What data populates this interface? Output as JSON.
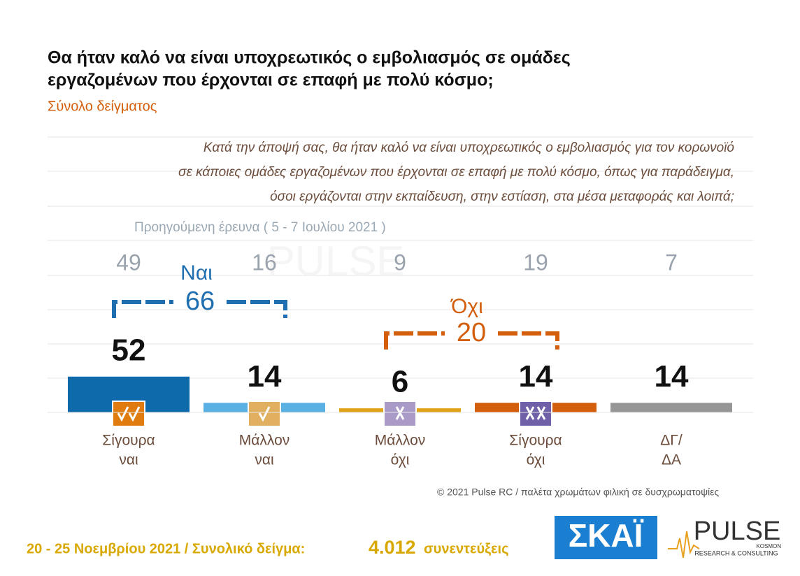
{
  "chart_data": {
    "type": "bar",
    "title": [
      "Θα ήταν καλό να είναι υποχρεωτικός ο εμβολιασμός σε ομάδες",
      "εργαζομένων που έρχονται σε επαφή με πολύ κόσμο;"
    ],
    "subtitle": "Σύνολο δείγματος",
    "question": [
      "Κατά την άποψή σας, θα ήταν καλό να είναι υποχρεωτικός ο εμβολιασμός για τον κορωνοϊό",
      "σε κάποιες ομάδες εργαζομένων που έρχονται σε επαφή με πολύ κόσμο, όπως για παράδειγμα,",
      "όσοι εργάζονται στην εκπαίδευση, στην εστίαση, στα μέσα μεταφοράς και λοιπά;"
    ],
    "previous_label": "Προηγούμενη έρευνα  ( 5 - 7 Ιουλίου 2021 )",
    "categories": [
      [
        "Σίγουρα",
        "ναι"
      ],
      [
        "Μάλλον",
        "ναι"
      ],
      [
        "Μάλλον",
        "όχι"
      ],
      [
        "Σίγουρα",
        "όχι"
      ],
      [
        "ΔΓ/",
        "ΔΑ"
      ]
    ],
    "series": [
      {
        "name": "Νοέμβριος 2021",
        "values": [
          52,
          14,
          6,
          14,
          14
        ],
        "colors": [
          "#0f6aab",
          "#5aafe3",
          "#e0a21a",
          "#d35f0c",
          "#969696"
        ]
      },
      {
        "name": "Προηγούμενη έρευνα",
        "values": [
          49,
          16,
          9,
          19,
          7
        ],
        "color": "#9aa3ad"
      }
    ],
    "groups": [
      {
        "label": "Ναι",
        "value": 66,
        "color": "#1f6fb0"
      },
      {
        "label": "Όχι",
        "value": 20,
        "color": "#d35f0c"
      }
    ],
    "ylim": [
      0,
      400
    ],
    "copyright": "© 2021 Pulse RC  /  παλέτα χρωμάτων φιλική σε δυσχρωματοψίες",
    "footer": {
      "dates": "20 - 25  Νοεμβρίου 2021  /  Συνολικό δείγμα:",
      "sample": "4.012",
      "unit": "συνεντεύξεις"
    },
    "logos": {
      "skai": "ΣΚΑΪ",
      "pulse": "PULSE",
      "pulse_sub": "RESEARCH & CONSULTING",
      "pulse_tag": "KOSMON"
    }
  }
}
